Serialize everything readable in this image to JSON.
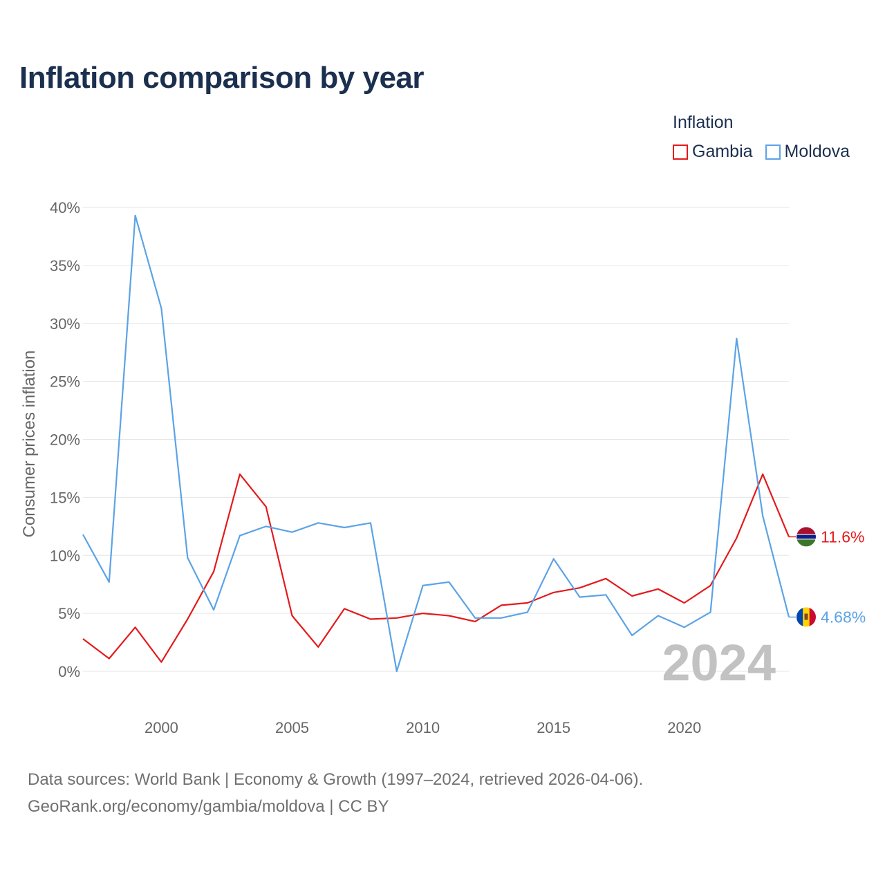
{
  "title": "Inflation comparison by year",
  "legend": {
    "title": "Inflation",
    "items": [
      {
        "name": "Gambia",
        "color": "#e31a1c"
      },
      {
        "name": "Moldova",
        "color": "#5ba3e6"
      }
    ]
  },
  "source": {
    "line1": "Data sources: World Bank | Economy & Growth (1997–2024, retrieved 2026-04-06).",
    "line2": "GeoRank.org/economy/gambia/moldova | CC BY"
  },
  "watermark_year": "2024",
  "chart_data": {
    "type": "line",
    "ylabel": "Consumer prices inflation",
    "xlim": [
      1997,
      2024
    ],
    "ylim": [
      0,
      40
    ],
    "yticks": [
      0,
      5,
      10,
      15,
      20,
      25,
      30,
      35,
      40
    ],
    "ytick_labels": [
      "0%",
      "5%",
      "10%",
      "15%",
      "20%",
      "25%",
      "30%",
      "35%",
      "40%"
    ],
    "xticks": [
      2000,
      2005,
      2010,
      2015,
      2020
    ],
    "xtick_labels": [
      "2000",
      "2005",
      "2010",
      "2015",
      "2020"
    ],
    "grid": true,
    "x": [
      1997,
      1998,
      1999,
      2000,
      2001,
      2002,
      2003,
      2004,
      2005,
      2006,
      2007,
      2008,
      2009,
      2010,
      2011,
      2012,
      2013,
      2014,
      2015,
      2016,
      2017,
      2018,
      2019,
      2020,
      2021,
      2022,
      2023,
      2024
    ],
    "series": [
      {
        "name": "Gambia",
        "color": "#e31a1c",
        "end_label": "11.6%",
        "values": [
          2.8,
          1.1,
          3.8,
          0.8,
          4.5,
          8.6,
          17.0,
          14.2,
          4.8,
          2.1,
          5.4,
          4.5,
          4.6,
          5.0,
          4.8,
          4.3,
          5.7,
          5.9,
          6.8,
          7.2,
          8.0,
          6.5,
          7.1,
          5.9,
          7.4,
          11.5,
          17.0,
          11.6
        ]
      },
      {
        "name": "Moldova",
        "color": "#5ba3e6",
        "end_label": "4.68%",
        "values": [
          11.8,
          7.7,
          39.3,
          31.3,
          9.8,
          5.3,
          11.7,
          12.5,
          12.0,
          12.8,
          12.4,
          12.8,
          0.0,
          7.4,
          7.7,
          4.6,
          4.6,
          5.1,
          9.7,
          6.4,
          6.6,
          3.1,
          4.8,
          3.8,
          5.1,
          28.7,
          13.4,
          4.68
        ]
      }
    ]
  }
}
